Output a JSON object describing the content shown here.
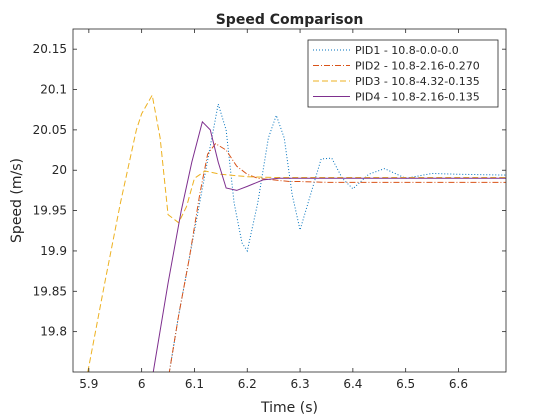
{
  "chart_data": {
    "type": "line",
    "title": "Speed Comparison",
    "xlabel": "Time (s)",
    "ylabel": "Speed (m/s)",
    "xlim": [
      5.87,
      6.69
    ],
    "ylim": [
      19.75,
      20.175
    ],
    "xticks": [
      5.9,
      6,
      6.1,
      6.2,
      6.3,
      6.4,
      6.5,
      6.6
    ],
    "xtick_labels": [
      "5.9",
      "6",
      "6.1",
      "6.2",
      "6.3",
      "6.4",
      "6.5",
      "6.6"
    ],
    "yticks": [
      19.8,
      19.85,
      19.9,
      19.95,
      20,
      20.05,
      20.1,
      20.15
    ],
    "ytick_labels": [
      "19.8",
      "19.85",
      "19.9",
      "19.95",
      "20",
      "20.05",
      "20.1",
      "20.15"
    ],
    "grid": false,
    "legend_position": "top-right",
    "series": [
      {
        "name": "PID1 - 10.8-0.0-0.0",
        "color": "#0072bd",
        "dash": "dotted",
        "x": [
          6.045,
          6.07,
          6.09,
          6.11,
          6.13,
          6.145,
          6.16,
          6.175,
          6.19,
          6.2,
          6.22,
          6.24,
          6.255,
          6.27,
          6.285,
          6.3,
          6.32,
          6.34,
          6.36,
          6.38,
          6.4,
          6.43,
          6.46,
          6.5,
          6.55,
          6.6,
          6.69
        ],
        "y": [
          19.72,
          19.82,
          19.89,
          19.96,
          20.03,
          20.082,
          20.05,
          19.96,
          19.91,
          19.9,
          19.96,
          20.04,
          20.068,
          20.04,
          19.97,
          19.926,
          19.97,
          20.014,
          20.015,
          19.99,
          19.977,
          19.995,
          20.002,
          19.99,
          19.996,
          19.995,
          19.994
        ]
      },
      {
        "name": "PID2 - 10.8-2.16-0.270",
        "color": "#d95319",
        "dash": "dashdot",
        "x": [
          6.045,
          6.07,
          6.09,
          6.11,
          6.125,
          6.14,
          6.16,
          6.18,
          6.2,
          6.22,
          6.25,
          6.28,
          6.3,
          6.35,
          6.4,
          6.45,
          6.5,
          6.55,
          6.6,
          6.69
        ],
        "y": [
          19.72,
          19.82,
          19.89,
          19.97,
          20.02,
          20.033,
          20.025,
          20.005,
          19.995,
          19.99,
          19.988,
          19.986,
          19.986,
          19.985,
          19.985,
          19.985,
          19.985,
          19.985,
          19.985,
          19.985
        ]
      },
      {
        "name": "PID3 - 10.8-4.32-0.135",
        "color": "#edb120",
        "dash": "dashed",
        "x": [
          5.898,
          5.93,
          5.96,
          5.99,
          6.0,
          6.02,
          6.035,
          6.05,
          6.07,
          6.085,
          6.1,
          6.12,
          6.15,
          6.2,
          6.25,
          6.3,
          6.4,
          6.5,
          6.6,
          6.69
        ],
        "y": [
          19.75,
          19.86,
          19.96,
          20.05,
          20.07,
          20.093,
          20.04,
          19.945,
          19.935,
          19.955,
          19.99,
          19.999,
          19.995,
          19.992,
          19.991,
          19.991,
          19.991,
          19.991,
          19.991,
          19.991
        ]
      },
      {
        "name": "PID4 - 10.8-2.16-0.135",
        "color": "#7e2f8e",
        "dash": "solid",
        "x": [
          6.022,
          6.05,
          6.075,
          6.095,
          6.115,
          6.13,
          6.145,
          6.16,
          6.18,
          6.2,
          6.23,
          6.26,
          6.3,
          6.35,
          6.4,
          6.5,
          6.6,
          6.69
        ],
        "y": [
          19.75,
          19.86,
          19.95,
          20.01,
          20.06,
          20.05,
          20.01,
          19.978,
          19.975,
          19.98,
          19.988,
          19.99,
          19.99,
          19.99,
          19.99,
          19.99,
          19.99,
          19.99
        ]
      }
    ]
  }
}
